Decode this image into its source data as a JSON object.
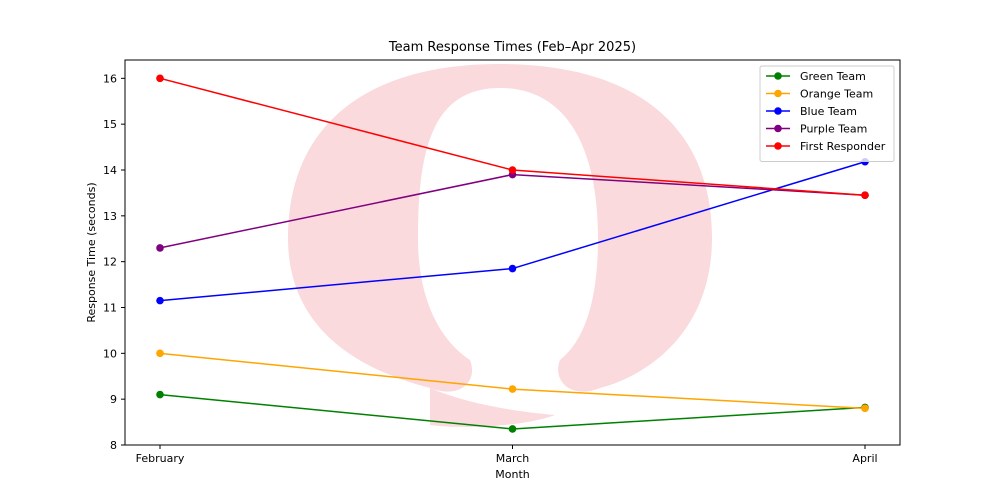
{
  "chart_data": {
    "type": "line",
    "title": "Team Response Times (Feb–Apr 2025)",
    "xlabel": "Month",
    "ylabel": "Response Time (seconds)",
    "categories": [
      "February",
      "March",
      "April"
    ],
    "ylim": [
      8,
      16.4
    ],
    "yticks": [
      "8",
      "9",
      "10",
      "11",
      "12",
      "13",
      "14",
      "15",
      "16"
    ],
    "grid": false,
    "legend_position": "top-right",
    "series": [
      {
        "name": "Green Team",
        "color": "#008000",
        "values": [
          9.1,
          8.35,
          8.82
        ]
      },
      {
        "name": "Orange Team",
        "color": "#ffa500",
        "values": [
          10.0,
          9.22,
          8.8
        ]
      },
      {
        "name": "Blue Team",
        "color": "#0000ff",
        "values": [
          11.15,
          11.85,
          14.18
        ]
      },
      {
        "name": "Purple Team",
        "color": "#800080",
        "values": [
          12.3,
          13.9,
          13.45
        ]
      },
      {
        "name": "First Responder",
        "color": "#ff0000",
        "values": [
          16.0,
          14.0,
          13.45
        ]
      }
    ]
  },
  "watermark": {
    "icon": "red-logo-watermark",
    "color": "#fadadd"
  }
}
